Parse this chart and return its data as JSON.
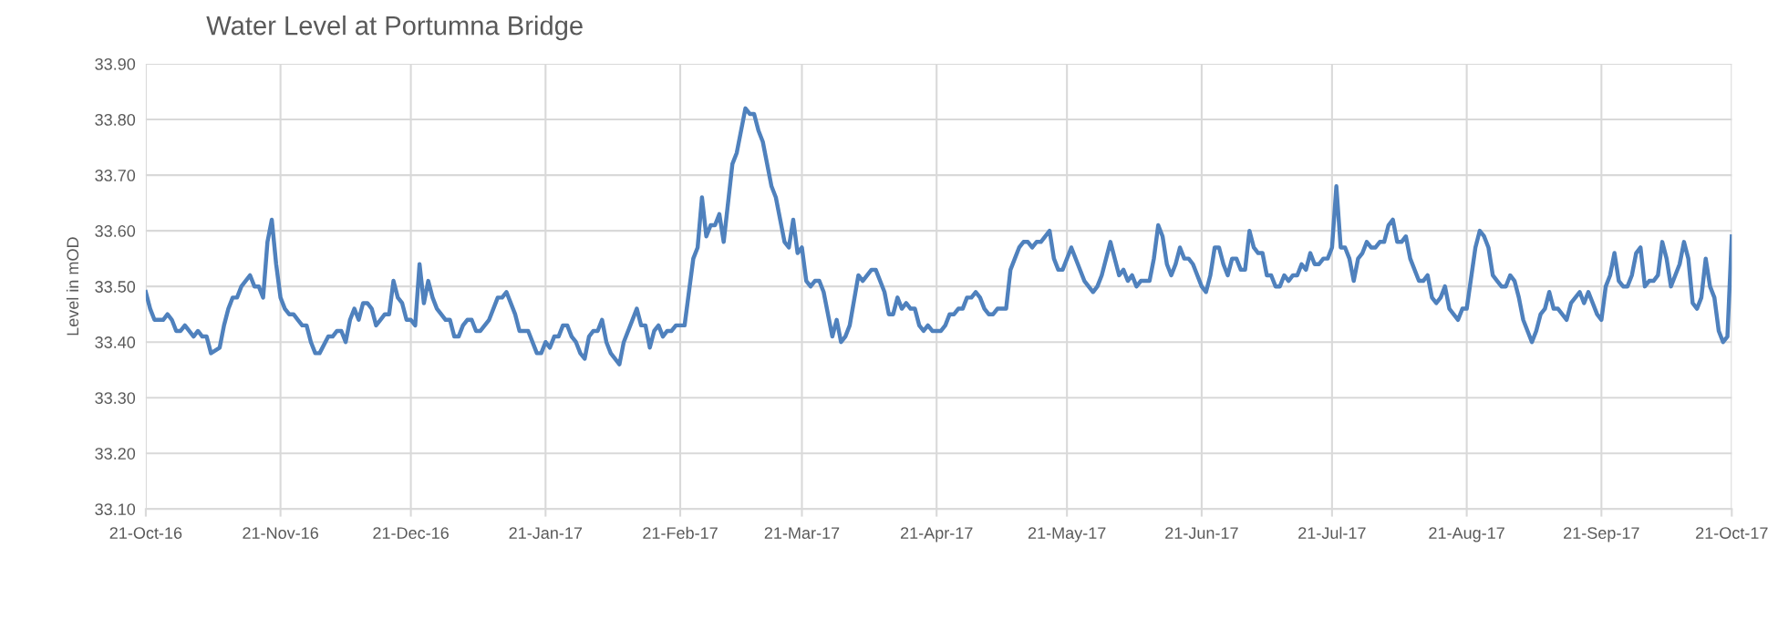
{
  "chart_data": {
    "type": "line",
    "title": "Water Level at Portumna Bridge",
    "ylabel": "Level in mOD",
    "series": [
      {
        "color": "#4f81bd",
        "x": [
          "2016-10-21",
          "2016-10-22",
          "2016-10-23",
          "2016-10-25",
          "2016-10-26",
          "2016-10-27",
          "2016-10-28",
          "2016-10-29",
          "2016-10-30",
          "2016-11-01",
          "2016-11-02",
          "2016-11-03",
          "2016-11-04",
          "2016-11-05",
          "2016-11-07",
          "2016-11-08",
          "2016-11-09",
          "2016-11-10",
          "2016-11-11",
          "2016-11-12",
          "2016-11-14",
          "2016-11-15",
          "2016-11-16",
          "2016-11-17",
          "2016-11-18",
          "2016-11-19",
          "2016-11-20",
          "2016-11-21",
          "2016-11-22",
          "2016-11-23",
          "2016-11-24",
          "2016-11-25",
          "2016-11-26",
          "2016-11-27",
          "2016-11-28",
          "2016-11-29",
          "2016-11-30",
          "2016-12-02",
          "2016-12-03",
          "2016-12-04",
          "2016-12-05",
          "2016-12-06",
          "2016-12-07",
          "2016-12-08",
          "2016-12-09",
          "2016-12-10",
          "2016-12-11",
          "2016-12-12",
          "2016-12-13",
          "2016-12-14",
          "2016-12-15",
          "2016-12-16",
          "2016-12-17",
          "2016-12-18",
          "2016-12-19",
          "2016-12-20",
          "2016-12-21",
          "2016-12-22",
          "2016-12-23",
          "2016-12-24",
          "2016-12-25",
          "2016-12-26",
          "2016-12-27",
          "2016-12-29",
          "2016-12-30",
          "2016-12-31",
          "2017-01-01",
          "2017-01-02",
          "2017-01-03",
          "2017-01-04",
          "2017-01-05",
          "2017-01-06",
          "2017-01-08",
          "2017-01-10",
          "2017-01-11",
          "2017-01-12",
          "2017-01-14",
          "2017-01-15",
          "2017-01-17",
          "2017-01-19",
          "2017-01-20",
          "2017-01-21",
          "2017-01-22",
          "2017-01-23",
          "2017-01-24",
          "2017-01-25",
          "2017-01-26",
          "2017-01-27",
          "2017-01-28",
          "2017-01-29",
          "2017-01-30",
          "2017-01-31",
          "2017-02-01",
          "2017-02-02",
          "2017-02-03",
          "2017-02-04",
          "2017-02-05",
          "2017-02-07",
          "2017-02-08",
          "2017-02-11",
          "2017-02-12",
          "2017-02-13",
          "2017-02-14",
          "2017-02-15",
          "2017-02-16",
          "2017-02-17",
          "2017-02-18",
          "2017-02-19",
          "2017-02-20",
          "2017-02-22",
          "2017-02-24",
          "2017-02-25",
          "2017-02-26",
          "2017-02-27",
          "2017-02-28",
          "2017-03-01",
          "2017-03-02",
          "2017-03-03",
          "2017-03-05",
          "2017-03-06",
          "2017-03-08",
          "2017-03-09",
          "2017-03-10",
          "2017-03-11",
          "2017-03-12",
          "2017-03-14",
          "2017-03-15",
          "2017-03-17",
          "2017-03-18",
          "2017-03-19",
          "2017-03-20",
          "2017-03-21",
          "2017-03-22",
          "2017-03-23",
          "2017-03-24",
          "2017-03-25",
          "2017-03-26",
          "2017-03-28",
          "2017-03-29",
          "2017-03-30",
          "2017-03-31",
          "2017-04-01",
          "2017-04-03",
          "2017-04-04",
          "2017-04-06",
          "2017-04-07",
          "2017-04-09",
          "2017-04-10",
          "2017-04-11",
          "2017-04-12",
          "2017-04-13",
          "2017-04-14",
          "2017-04-15",
          "2017-04-16",
          "2017-04-17",
          "2017-04-18",
          "2017-04-19",
          "2017-04-20",
          "2017-04-21",
          "2017-04-22",
          "2017-04-23",
          "2017-04-24",
          "2017-04-25",
          "2017-04-26",
          "2017-04-27",
          "2017-04-28",
          "2017-04-29",
          "2017-04-30",
          "2017-05-01",
          "2017-05-02",
          "2017-05-03",
          "2017-05-04",
          "2017-05-05",
          "2017-05-07",
          "2017-05-08",
          "2017-05-09",
          "2017-05-10",
          "2017-05-11",
          "2017-05-12",
          "2017-05-13",
          "2017-05-14",
          "2017-05-15",
          "2017-05-17",
          "2017-05-18",
          "2017-05-19",
          "2017-05-20",
          "2017-05-22",
          "2017-05-25",
          "2017-05-27",
          "2017-05-28",
          "2017-05-29",
          "2017-05-31",
          "2017-06-02",
          "2017-06-03",
          "2017-06-04",
          "2017-06-05",
          "2017-06-06",
          "2017-06-07",
          "2017-06-09",
          "2017-06-10",
          "2017-06-11",
          "2017-06-12",
          "2017-06-13",
          "2017-06-14",
          "2017-06-15",
          "2017-06-16",
          "2017-06-17",
          "2017-06-18",
          "2017-06-19",
          "2017-06-21",
          "2017-06-22",
          "2017-06-23",
          "2017-06-24",
          "2017-06-25",
          "2017-06-26",
          "2017-06-27",
          "2017-06-28",
          "2017-06-29",
          "2017-06-30",
          "2017-07-01",
          "2017-07-02",
          "2017-07-03",
          "2017-07-04",
          "2017-07-05",
          "2017-07-06",
          "2017-07-07",
          "2017-07-08",
          "2017-07-09",
          "2017-07-10",
          "2017-07-11",
          "2017-07-12",
          "2017-07-13",
          "2017-07-14",
          "2017-07-15",
          "2017-07-16",
          "2017-07-17",
          "2017-07-18",
          "2017-07-19",
          "2017-07-20",
          "2017-07-21",
          "2017-07-22",
          "2017-07-23",
          "2017-07-24",
          "2017-07-25",
          "2017-07-26",
          "2017-07-27",
          "2017-07-28",
          "2017-07-29",
          "2017-07-30",
          "2017-07-31",
          "2017-08-01",
          "2017-08-02",
          "2017-08-03",
          "2017-08-04",
          "2017-08-05",
          "2017-08-06",
          "2017-08-07",
          "2017-08-08",
          "2017-08-10",
          "2017-08-11",
          "2017-08-12",
          "2017-08-13",
          "2017-08-14",
          "2017-08-15",
          "2017-08-16",
          "2017-08-17",
          "2017-08-19",
          "2017-08-20",
          "2017-08-21",
          "2017-08-23",
          "2017-08-24",
          "2017-08-25",
          "2017-08-26",
          "2017-08-27",
          "2017-08-28",
          "2017-08-29",
          "2017-08-30",
          "2017-08-31",
          "2017-09-01",
          "2017-09-02",
          "2017-09-03",
          "2017-09-05",
          "2017-09-06",
          "2017-09-07",
          "2017-09-08",
          "2017-09-09",
          "2017-09-10",
          "2017-09-11",
          "2017-09-13",
          "2017-09-14",
          "2017-09-15",
          "2017-09-16",
          "2017-09-17",
          "2017-09-18",
          "2017-09-20",
          "2017-09-21",
          "2017-09-22",
          "2017-09-23",
          "2017-09-24",
          "2017-09-25",
          "2017-09-26",
          "2017-09-27",
          "2017-09-28",
          "2017-09-29",
          "2017-09-30",
          "2017-10-01",
          "2017-10-02",
          "2017-10-03",
          "2017-10-04",
          "2017-10-05",
          "2017-10-06",
          "2017-10-07",
          "2017-10-09",
          "2017-10-10",
          "2017-10-11",
          "2017-10-12",
          "2017-10-13",
          "2017-10-14",
          "2017-10-15",
          "2017-10-16",
          "2017-10-17",
          "2017-10-18",
          "2017-10-19",
          "2017-10-20",
          "2017-10-21"
        ],
        "values": [
          33.49,
          33.46,
          33.44,
          33.44,
          33.45,
          33.44,
          33.42,
          33.42,
          33.43,
          33.41,
          33.42,
          33.41,
          33.41,
          33.38,
          33.39,
          33.43,
          33.46,
          33.48,
          33.48,
          33.5,
          33.52,
          33.5,
          33.5,
          33.48,
          33.58,
          33.62,
          33.54,
          33.48,
          33.46,
          33.45,
          33.45,
          33.44,
          33.43,
          33.43,
          33.4,
          33.38,
          33.38,
          33.41,
          33.41,
          33.42,
          33.42,
          33.4,
          33.44,
          33.46,
          33.44,
          33.47,
          33.47,
          33.46,
          33.43,
          33.44,
          33.45,
          33.45,
          33.51,
          33.48,
          33.47,
          33.44,
          33.44,
          33.43,
          33.54,
          33.47,
          33.51,
          33.48,
          33.46,
          33.44,
          33.44,
          33.41,
          33.41,
          33.43,
          33.44,
          33.44,
          33.42,
          33.42,
          33.44,
          33.48,
          33.48,
          33.49,
          33.45,
          33.42,
          33.42,
          33.38,
          33.38,
          33.4,
          33.39,
          33.41,
          33.41,
          33.43,
          33.43,
          33.41,
          33.4,
          33.38,
          33.37,
          33.41,
          33.42,
          33.42,
          33.44,
          33.4,
          33.38,
          33.36,
          33.4,
          33.46,
          33.43,
          33.43,
          33.39,
          33.42,
          33.43,
          33.41,
          33.42,
          33.42,
          33.43,
          33.43,
          33.55,
          33.57,
          33.66,
          33.59,
          33.61,
          33.61,
          33.63,
          33.58,
          33.72,
          33.74,
          33.82,
          33.81,
          33.81,
          33.78,
          33.76,
          33.68,
          33.66,
          33.58,
          33.57,
          33.62,
          33.56,
          33.57,
          33.51,
          33.5,
          33.51,
          33.51,
          33.49,
          33.41,
          33.44,
          33.4,
          33.41,
          33.43,
          33.52,
          33.51,
          33.53,
          33.53,
          33.49,
          33.45,
          33.45,
          33.48,
          33.46,
          33.47,
          33.46,
          33.46,
          33.43,
          33.42,
          33.43,
          33.42,
          33.42,
          33.42,
          33.43,
          33.45,
          33.45,
          33.46,
          33.46,
          33.48,
          33.48,
          33.49,
          33.48,
          33.46,
          33.45,
          33.45,
          33.46,
          33.46,
          33.53,
          33.55,
          33.57,
          33.58,
          33.58,
          33.57,
          33.58,
          33.58,
          33.6,
          33.55,
          33.53,
          33.53,
          33.57,
          33.51,
          33.49,
          33.5,
          33.52,
          33.58,
          33.52,
          33.53,
          33.51,
          33.52,
          33.5,
          33.51,
          33.51,
          33.55,
          33.61,
          33.59,
          33.54,
          33.52,
          33.54,
          33.57,
          33.55,
          33.55,
          33.54,
          33.5,
          33.49,
          33.52,
          33.57,
          33.57,
          33.54,
          33.52,
          33.55,
          33.55,
          33.53,
          33.53,
          33.6,
          33.57,
          33.56,
          33.56,
          33.52,
          33.52,
          33.5,
          33.5,
          33.52,
          33.51,
          33.52,
          33.52,
          33.54,
          33.53,
          33.56,
          33.54,
          33.54,
          33.55,
          33.55,
          33.57,
          33.68,
          33.57,
          33.57,
          33.55,
          33.51,
          33.55,
          33.56,
          33.58,
          33.57,
          33.57,
          33.58,
          33.58,
          33.61,
          33.62,
          33.58,
          33.58,
          33.59,
          33.55,
          33.51,
          33.51,
          33.52,
          33.48,
          33.47,
          33.48,
          33.5,
          33.46,
          33.44,
          33.46,
          33.46,
          33.57,
          33.6,
          33.59,
          33.57,
          33.52,
          33.51,
          33.5,
          33.5,
          33.52,
          33.51,
          33.48,
          33.44,
          33.4,
          33.42,
          33.45,
          33.46,
          33.49,
          33.46,
          33.46,
          33.44,
          33.47,
          33.48,
          33.49,
          33.47,
          33.49,
          33.45,
          33.44,
          33.5,
          33.52,
          33.56,
          33.51,
          33.5,
          33.5,
          33.52,
          33.56,
          33.57,
          33.5,
          33.51,
          33.51,
          33.52,
          33.58,
          33.55,
          33.5,
          33.54,
          33.58,
          33.55,
          33.47,
          33.46,
          33.48,
          33.55,
          33.5,
          33.48,
          33.42,
          33.4,
          33.41,
          33.59
        ]
      }
    ],
    "xlim": [
      "2016-10-21",
      "2017-10-21"
    ],
    "xticks": [
      {
        "value": "2016-10-21",
        "label": "21-Oct-16"
      },
      {
        "value": "2016-11-21",
        "label": "21-Nov-16"
      },
      {
        "value": "2016-12-21",
        "label": "21-Dec-16"
      },
      {
        "value": "2017-01-21",
        "label": "21-Jan-17"
      },
      {
        "value": "2017-02-21",
        "label": "21-Feb-17"
      },
      {
        "value": "2017-03-21",
        "label": "21-Mar-17"
      },
      {
        "value": "2017-04-21",
        "label": "21-Apr-17"
      },
      {
        "value": "2017-05-21",
        "label": "21-May-17"
      },
      {
        "value": "2017-06-21",
        "label": "21-Jun-17"
      },
      {
        "value": "2017-07-21",
        "label": "21-Jul-17"
      },
      {
        "value": "2017-08-21",
        "label": "21-Aug-17"
      },
      {
        "value": "2017-09-21",
        "label": "21-Sep-17"
      },
      {
        "value": "2017-10-21",
        "label": "21-Oct-17"
      }
    ],
    "ylim": [
      33.1,
      33.9
    ],
    "yticks": [
      {
        "value": 33.1,
        "label": "33.10"
      },
      {
        "value": 33.2,
        "label": "33.20"
      },
      {
        "value": 33.3,
        "label": "33.30"
      },
      {
        "value": 33.4,
        "label": "33.40"
      },
      {
        "value": 33.5,
        "label": "33.50"
      },
      {
        "value": 33.6,
        "label": "33.60"
      },
      {
        "value": 33.7,
        "label": "33.70"
      },
      {
        "value": 33.8,
        "label": "33.80"
      },
      {
        "value": 33.9,
        "label": "33.90"
      }
    ],
    "grid": true,
    "marker": "none",
    "line_style": "solid"
  }
}
